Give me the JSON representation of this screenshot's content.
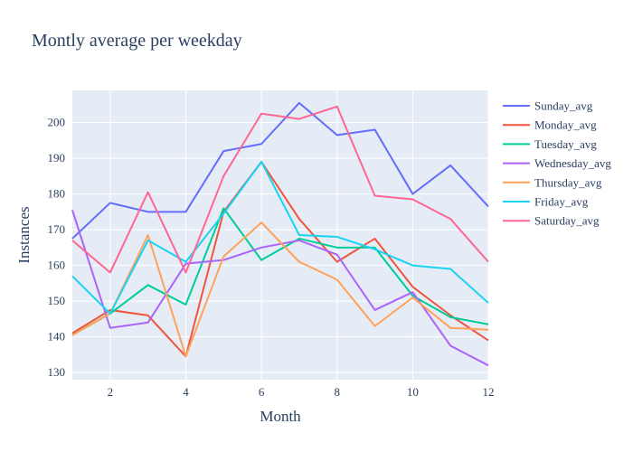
{
  "chart_data": {
    "type": "line",
    "title": "Montly average per weekday",
    "xlabel": "Month",
    "ylabel": "Instances",
    "xlim": [
      1,
      12
    ],
    "ylim": [
      128,
      209
    ],
    "xticks": [
      2,
      4,
      6,
      8,
      10,
      12
    ],
    "yticks": [
      130,
      140,
      150,
      160,
      170,
      180,
      190,
      200
    ],
    "grid": true,
    "legend": "right",
    "x": [
      1,
      2,
      3,
      4,
      5,
      6,
      7,
      8,
      9,
      10,
      11,
      12
    ],
    "series": [
      {
        "name": "Sunday_avg",
        "color": "#636efa",
        "values": [
          167.5,
          177.5,
          175,
          175,
          192,
          194,
          205.5,
          196.5,
          198,
          180,
          188,
          176.5
        ]
      },
      {
        "name": "Monday_avg",
        "color": "#EF553B",
        "values": [
          141,
          147.5,
          146,
          134.5,
          175,
          189,
          173,
          161,
          167.5,
          154,
          146,
          139
        ]
      },
      {
        "name": "Tuesday_avg",
        "color": "#00cc96",
        "values": [
          140.5,
          146.5,
          154.5,
          149,
          176,
          161.5,
          167.5,
          165,
          165,
          151.5,
          145.5,
          143.5
        ]
      },
      {
        "name": "Wednesday_avg",
        "color": "#ab63fa",
        "values": [
          175.5,
          142.5,
          144,
          160.5,
          161.5,
          165,
          167,
          163,
          147.5,
          152.5,
          137.5,
          132
        ]
      },
      {
        "name": "Thursday_avg",
        "color": "#FFA15A",
        "values": [
          140.5,
          146.5,
          168.5,
          134.5,
          162.5,
          172,
          161,
          156,
          143,
          151,
          142.5,
          142
        ]
      },
      {
        "name": "Friday_avg",
        "color": "#19d3f3",
        "values": [
          157,
          146.5,
          167,
          161,
          174.5,
          189,
          168.5,
          168,
          164.5,
          160,
          159,
          149.5
        ]
      },
      {
        "name": "Saturday_avg",
        "color": "#FF6692",
        "values": [
          167,
          158,
          180.5,
          158,
          185,
          202.5,
          201,
          204.5,
          179.5,
          178.5,
          173,
          161
        ]
      }
    ]
  }
}
